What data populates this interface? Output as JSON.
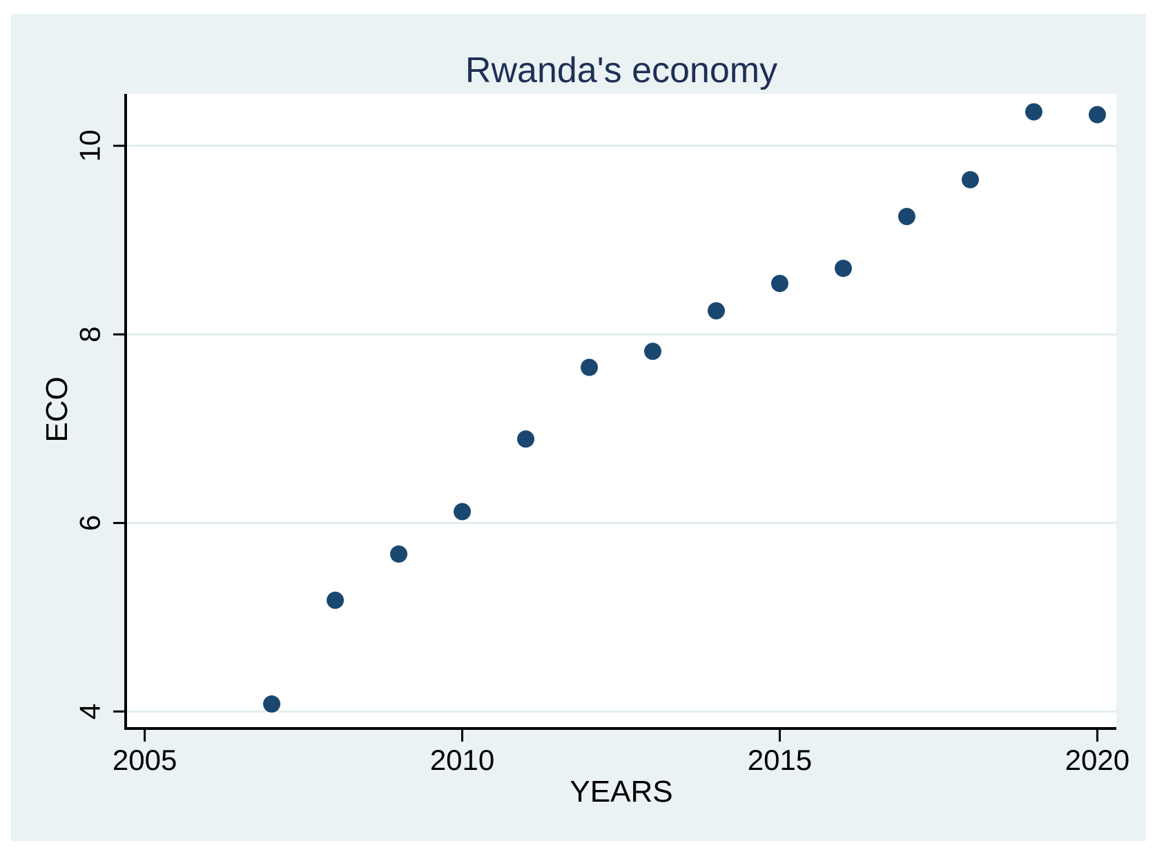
{
  "figure": {
    "background_color": "#eaf2f3",
    "plot_background_color": "#ffffff",
    "axis_color": "#000000",
    "title_color": "#1f2f55"
  },
  "chart_data": {
    "type": "scatter",
    "title": "Rwanda's economy",
    "xlabel": "YEARS",
    "ylabel": "ECO",
    "x_ticks": [
      2005,
      2010,
      2015,
      2020
    ],
    "y_ticks": [
      4,
      6,
      8,
      10
    ],
    "xlim": [
      2004.7,
      2020.3
    ],
    "ylim": [
      3.82,
      10.55
    ],
    "grid": "horizontal-gridlines-at-y-ticks",
    "legend_position": "none",
    "marker": "filled-circle",
    "marker_color": "#1a476f",
    "gridline_color": "#e3edef",
    "points": [
      {
        "x": 2007,
        "y": 4.08
      },
      {
        "x": 2008,
        "y": 5.18
      },
      {
        "x": 2009,
        "y": 5.67
      },
      {
        "x": 2010,
        "y": 6.12
      },
      {
        "x": 2011,
        "y": 6.89
      },
      {
        "x": 2012,
        "y": 7.65
      },
      {
        "x": 2013,
        "y": 7.82
      },
      {
        "x": 2014,
        "y": 8.25
      },
      {
        "x": 2015,
        "y": 8.54
      },
      {
        "x": 2016,
        "y": 8.7
      },
      {
        "x": 2017,
        "y": 9.25
      },
      {
        "x": 2018,
        "y": 9.64
      },
      {
        "x": 2019,
        "y": 10.36
      },
      {
        "x": 2020,
        "y": 10.33
      }
    ]
  }
}
